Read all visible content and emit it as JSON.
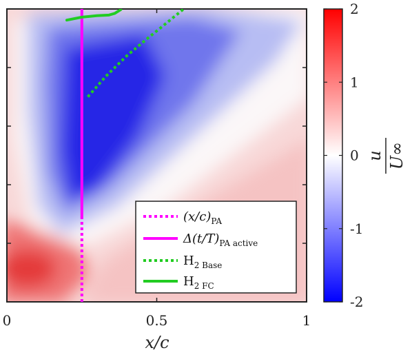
{
  "chart_data": {
    "type": "heatmap",
    "xlabel": "x/c",
    "xlim": [
      0,
      1
    ],
    "x_ticks": [
      "0",
      "0.5",
      "1"
    ],
    "colorbar": {
      "label_numerator": "u",
      "label_denominator": "U∞",
      "range": [
        -2,
        2
      ],
      "ticks": [
        "2",
        "1",
        "0",
        "-1",
        "-2"
      ],
      "low_color": "#0000ff",
      "mid_color": "#ffffff",
      "high_color": "#ff0000"
    },
    "legend": {
      "placement": "bottom-right",
      "entries": [
        {
          "main": "(x/c)",
          "sub": "PA",
          "style": "dotted",
          "color": "#ff00ff"
        },
        {
          "main": "Δ(t/T)",
          "sub": "PA active",
          "style": "solid",
          "color": "#ff00ff"
        },
        {
          "main": "H",
          "sub": "2 Base",
          "style": "dotted",
          "color": "#22cc22"
        },
        {
          "main": "H",
          "sub": "2 FC",
          "style": "solid",
          "color": "#22cc22"
        }
      ]
    },
    "overlays": [
      {
        "name": "(x/c)_PA",
        "style": "dotted",
        "color": "#ff00ff",
        "x": [
          0.25,
          0.25
        ],
        "y": [
          0.0,
          0.29
        ]
      },
      {
        "name": "Δ(t/T)_PA active",
        "style": "solid",
        "color": "#ff00ff",
        "x": [
          0.25,
          0.25
        ],
        "y": [
          0.29,
          1.0
        ]
      },
      {
        "name": "H2 Base",
        "style": "dotted",
        "color": "#22cc22",
        "x": [
          0.27,
          0.33,
          0.4,
          0.47,
          0.53,
          0.59
        ],
        "y": [
          0.7,
          0.77,
          0.84,
          0.9,
          0.95,
          1.0
        ]
      },
      {
        "name": "H2 FC",
        "style": "solid",
        "color": "#22cc22",
        "x": [
          0.2,
          0.25,
          0.3,
          0.34,
          0.36,
          0.38
        ],
        "y": [
          0.962,
          0.972,
          0.977,
          0.979,
          0.985,
          0.998
        ]
      }
    ]
  }
}
